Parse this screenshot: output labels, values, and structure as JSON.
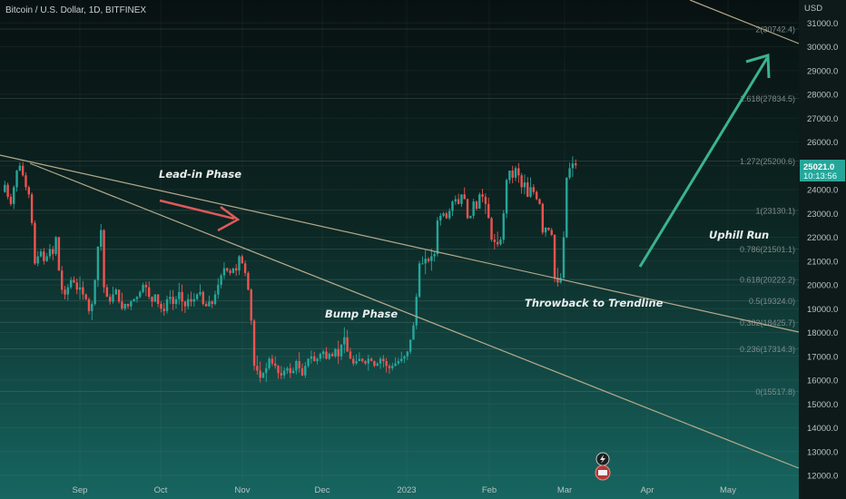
{
  "header": {
    "title": "Bitcoin / U.S. Dollar, 1D, BITFINEX"
  },
  "chart_data": {
    "type": "candlestick",
    "title": "Bitcoin / U.S. Dollar, 1D, BITFINEX",
    "currency": "USD",
    "ylim": [
      11600,
      32000
    ],
    "y_ticks": [
      12000,
      13000,
      14000,
      15000,
      16000,
      17000,
      18000,
      19000,
      20000,
      21000,
      22000,
      23000,
      24000,
      25000,
      26000,
      27000,
      28000,
      29000,
      30000,
      31000
    ],
    "y_tick_labels": [
      "12000.0",
      "13000.0",
      "14000.0",
      "15000.0",
      "16000.0",
      "17000.0",
      "18000.0",
      "19000.0",
      "20000.0",
      "21000.0",
      "22000.0",
      "23000.0",
      "24000.0",
      "25000.0",
      "26000.0",
      "27000.0",
      "28000.0",
      "29000.0",
      "30000.0",
      "31000.0"
    ],
    "x_labels": [
      "Sep",
      "Oct",
      "Nov",
      "Dec",
      "2023",
      "Feb",
      "Mar",
      "Apr",
      "May"
    ],
    "price_label": {
      "price": "25021.0",
      "countdown": "10:13:56"
    },
    "fib_levels": [
      {
        "label": "0(15517.8)",
        "value": 15517.8
      },
      {
        "label": "0.236(17314.3)",
        "value": 17314.3
      },
      {
        "label": "0.382(18425.7)",
        "value": 18425.7
      },
      {
        "label": "0.5(19324.0)",
        "value": 19324.0
      },
      {
        "label": "0.618(20222.2)",
        "value": 20222.2
      },
      {
        "label": "0.786(21501.1)",
        "value": 21501.1
      },
      {
        "label": "1(23130.1)",
        "value": 23130.1
      },
      {
        "label": "1.272(25200.6)",
        "value": 25200.6
      },
      {
        "label": "1.618(27834.5)",
        "value": 27834.5
      },
      {
        "label": "2(30742.4)",
        "value": 30742.4
      }
    ],
    "annotations": {
      "lead_in": "Lead-in Phase",
      "bump": "Bump Phase",
      "throwback": "Throwback to Trendline",
      "uphill": "Uphill Run"
    },
    "colors": {
      "up": "#26a69a",
      "down": "#ef5350",
      "trendline": "#b5a98c",
      "arrow_red": "#e05a5a",
      "arrow_green": "#3bb38f"
    },
    "prices": [
      23900,
      24200,
      23700,
      23400,
      24100,
      24800,
      25000,
      24600,
      24100,
      23800,
      22600,
      20900,
      21200,
      21400,
      21000,
      21200,
      21500,
      21300,
      22000,
      20600,
      19800,
      19600,
      19900,
      20200,
      20100,
      19800,
      19900,
      19600,
      19400,
      18900,
      19200,
      20200,
      21600,
      22300,
      19900,
      19500,
      19300,
      19600,
      19800,
      19300,
      19000,
      19200,
      19100,
      19300,
      19400,
      19500,
      19700,
      20000,
      19900,
      19500,
      19300,
      19600,
      19200,
      19000,
      18900,
      19400,
      19500,
      19200,
      19400,
      19700,
      19300,
      19100,
      19400,
      19300,
      19400,
      19600,
      19700,
      19200,
      19100,
      19300,
      19200,
      19600,
      20000,
      20400,
      20700,
      20600,
      20500,
      20700,
      20600,
      21200,
      20900,
      20500,
      19800,
      18500,
      16600,
      16400,
      16100,
      16300,
      16500,
      16900,
      16700,
      16600,
      16300,
      16200,
      16400,
      16500,
      16300,
      16400,
      16800,
      16500,
      16200,
      16600,
      16900,
      17000,
      16800,
      16900,
      17100,
      17200,
      16900,
      17100,
      17000,
      17300,
      17000,
      17500,
      17800,
      17200,
      16900,
      16700,
      16800,
      16900,
      16800,
      16700,
      16900,
      16800,
      16600,
      16700,
      16900,
      16800,
      16600,
      16500,
      16600,
      16700,
      16800,
      16900,
      17000,
      17200,
      17700,
      18300,
      19500,
      20900,
      20900,
      21100,
      21000,
      21200,
      21300,
      22700,
      22900,
      23000,
      22800,
      23100,
      23500,
      23600,
      23400,
      23800,
      23600,
      22800,
      22900,
      23500,
      23200,
      23800,
      23700,
      23400,
      22800,
      21900,
      21800,
      21700,
      21900,
      23000,
      24400,
      24800,
      24500,
      24900,
      24600,
      24100,
      24300,
      23700,
      24100,
      23900,
      23600,
      23400,
      22200,
      22400,
      22300,
      22100,
      20300,
      20100,
      20300,
      22000,
      24500,
      24900,
      25100,
      25021
    ]
  }
}
